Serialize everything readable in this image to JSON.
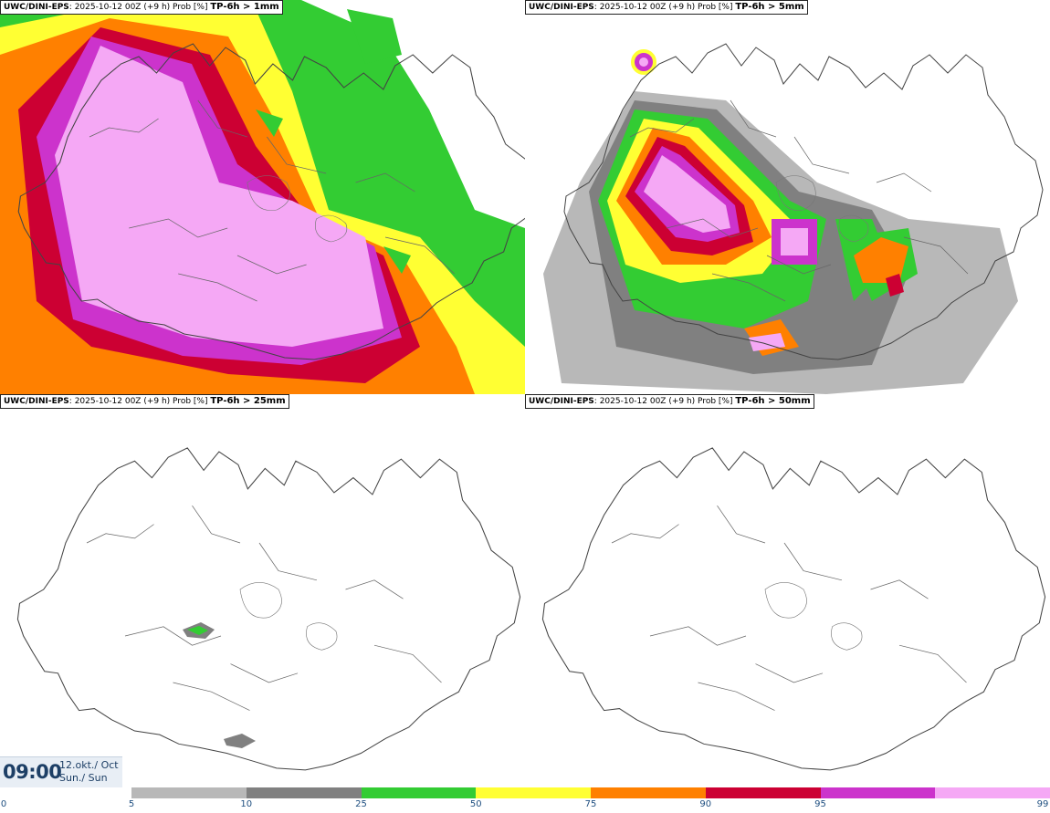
{
  "panels": [
    {
      "source": "UWC/DINI-EPS",
      "info": ": 2025-10-12 00Z (+9 h) Prob [%] ",
      "threshold": "TP-6h > 1mm"
    },
    {
      "source": "UWC/DINI-EPS",
      "info": ": 2025-10-12 00Z (+9 h) Prob [%] ",
      "threshold": "TP-6h > 5mm"
    },
    {
      "source": "UWC/DINI-EPS",
      "info": ": 2025-10-12 00Z (+9 h) Prob [%] ",
      "threshold": "TP-6h > 25mm"
    },
    {
      "source": "UWC/DINI-EPS",
      "info": ": 2025-10-12 00Z (+9 h) Prob [%] ",
      "threshold": "TP-6h > 50mm"
    }
  ],
  "valid_time": {
    "time": "09:00",
    "date": "12.okt./ Oct",
    "day": "Sun./ Sun"
  },
  "colorbar": {
    "ticks": [
      "0",
      "5",
      "10",
      "25",
      "50",
      "75",
      "90",
      "95",
      "99"
    ],
    "colors": [
      "#b8b8b8",
      "#808080",
      "#33cc33",
      "#ffff33",
      "#ff8000",
      "#cc0033",
      "#cc33cc",
      "#f5a8f5"
    ]
  }
}
